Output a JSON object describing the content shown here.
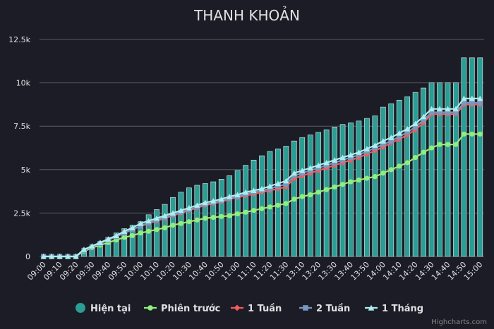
{
  "chart_data": {
    "type": "bar",
    "title": "THANH KHOẢN",
    "credit": "Highcharts.com",
    "ylim": [
      0,
      12500
    ],
    "y_ticks": [
      0,
      2500,
      5000,
      7500,
      10000,
      12500
    ],
    "y_tick_labels": [
      "0",
      "2.5k",
      "5k",
      "7.5k",
      "10k",
      "12.5k"
    ],
    "grid": true,
    "legend_position": "bottom-center",
    "x": [
      "09:00",
      "09:05",
      "09:10",
      "09:15",
      "09:20",
      "09:25",
      "09:30",
      "09:35",
      "09:40",
      "09:45",
      "09:50",
      "09:55",
      "10:00",
      "10:05",
      "10:10",
      "10:15",
      "10:20",
      "10:25",
      "10:30",
      "10:35",
      "10:40",
      "10:45",
      "10:50",
      "10:55",
      "11:00",
      "11:05",
      "11:10",
      "11:15",
      "11:20",
      "11:25",
      "11:30",
      "13:05",
      "13:10",
      "13:15",
      "13:20",
      "13:25",
      "13:30",
      "13:35",
      "13:40",
      "13:45",
      "13:50",
      "13:55",
      "14:00",
      "14:05",
      "14:10",
      "14:15",
      "14:20",
      "14:25",
      "14:30",
      "14:35",
      "14:40",
      "14:45",
      "14:50",
      "14:55",
      "15:00"
    ],
    "x_tick_labels": [
      "09:00",
      "09:10",
      "09:20",
      "09:30",
      "09:40",
      "09:50",
      "10:00",
      "10:10",
      "10:20",
      "10:30",
      "10:40",
      "10:50",
      "11:00",
      "11:10",
      "11:20",
      "11:30",
      "13:10",
      "13:20",
      "13:30",
      "13:40",
      "13:50",
      "14:00",
      "14:10",
      "14:20",
      "14:30",
      "14:40",
      "14:50",
      "15:00"
    ],
    "series": [
      {
        "name": "Hiện tại",
        "kind": "bar",
        "color": "#2a9d94",
        "marker": "circle",
        "values": [
          0,
          0,
          0,
          0,
          0,
          350,
          600,
          850,
          1100,
          1350,
          1600,
          1800,
          2000,
          2400,
          2700,
          3000,
          3400,
          3700,
          3950,
          4100,
          4200,
          4300,
          4450,
          4650,
          4950,
          5250,
          5550,
          5800,
          6050,
          6200,
          6350,
          6650,
          6850,
          7000,
          7150,
          7300,
          7450,
          7600,
          7700,
          7800,
          7950,
          8100,
          8600,
          8800,
          9000,
          9200,
          9450,
          9700,
          10000,
          10000,
          10000,
          10000,
          11450,
          11450,
          11450
        ]
      },
      {
        "name": "Phiên trước",
        "kind": "line",
        "color": "#90ee7e",
        "marker": "circle",
        "values": [
          0,
          0,
          0,
          0,
          0,
          300,
          500,
          650,
          800,
          950,
          1100,
          1200,
          1350,
          1450,
          1550,
          1650,
          1800,
          1900,
          2000,
          2100,
          2200,
          2250,
          2300,
          2350,
          2450,
          2550,
          2650,
          2750,
          2850,
          2950,
          3050,
          3300,
          3450,
          3550,
          3700,
          3850,
          4000,
          4150,
          4300,
          4400,
          4500,
          4600,
          4800,
          5000,
          5200,
          5400,
          5700,
          6000,
          6250,
          6450,
          6450,
          6450,
          7050,
          7050,
          7050
        ]
      },
      {
        "name": "1 Tuần",
        "kind": "line",
        "color": "#f45b5b",
        "marker": "diamond",
        "values": [
          0,
          0,
          0,
          0,
          0,
          350,
          550,
          750,
          950,
          1150,
          1350,
          1550,
          1750,
          1900,
          2050,
          2200,
          2350,
          2500,
          2650,
          2800,
          2950,
          3050,
          3150,
          3300,
          3400,
          3500,
          3600,
          3700,
          3800,
          3900,
          4000,
          4500,
          4650,
          4800,
          4950,
          5100,
          5250,
          5400,
          5550,
          5700,
          5900,
          6100,
          6300,
          6550,
          6750,
          7000,
          7300,
          7700,
          8200,
          8200,
          8200,
          8200,
          8750,
          8750,
          8750
        ]
      },
      {
        "name": "2 Tuần",
        "kind": "line",
        "color": "#7798bf",
        "marker": "square",
        "values": [
          0,
          0,
          0,
          0,
          0,
          350,
          550,
          750,
          950,
          1150,
          1350,
          1550,
          1750,
          1950,
          2100,
          2250,
          2400,
          2550,
          2700,
          2850,
          3000,
          3100,
          3200,
          3350,
          3450,
          3600,
          3700,
          3800,
          3900,
          4050,
          4150,
          4650,
          4800,
          4950,
          5100,
          5250,
          5400,
          5550,
          5700,
          5850,
          6050,
          6250,
          6450,
          6650,
          6900,
          7150,
          7450,
          7850,
          8300,
          8300,
          8300,
          8300,
          8850,
          8850,
          8850
        ]
      },
      {
        "name": "1 Tháng",
        "kind": "line",
        "color": "#aaeeee",
        "marker": "triangle",
        "values": [
          0,
          0,
          0,
          0,
          0,
          400,
          600,
          800,
          1000,
          1200,
          1450,
          1650,
          1900,
          2050,
          2200,
          2350,
          2500,
          2650,
          2800,
          2950,
          3100,
          3200,
          3300,
          3450,
          3550,
          3700,
          3800,
          3900,
          4050,
          4200,
          4350,
          4800,
          4950,
          5100,
          5250,
          5400,
          5550,
          5700,
          5850,
          6000,
          6200,
          6400,
          6650,
          6850,
          7100,
          7350,
          7650,
          8050,
          8500,
          8500,
          8500,
          8500,
          9100,
          9100,
          9100
        ]
      }
    ]
  }
}
